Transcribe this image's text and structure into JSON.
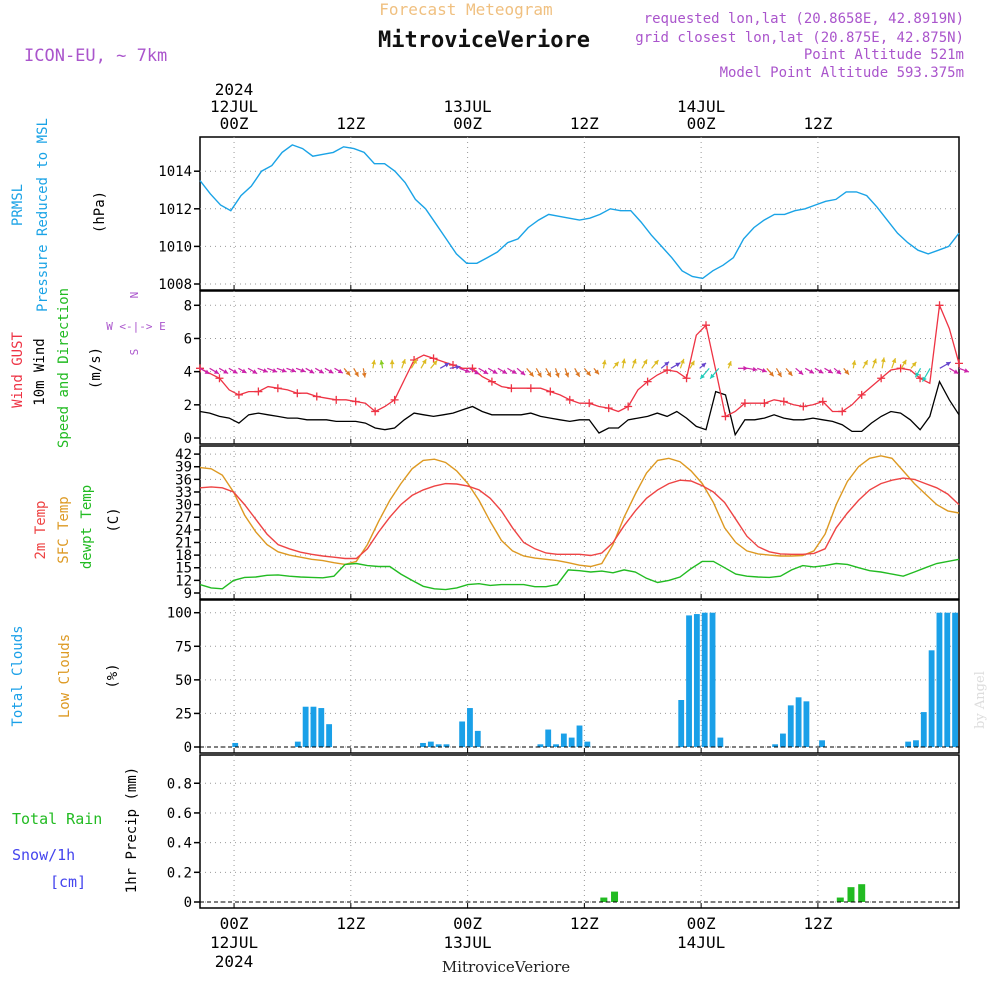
{
  "header": {
    "title_top": "Forecast Meteogram",
    "location": "MitroviceVeriore",
    "model": "ICON-EU, ~ 7km",
    "requested": "requested lon,lat (20.8658E, 42.8919N)",
    "closest": "grid closest lon,lat (20.875E, 42.875N)",
    "point_alt": "Point Altitude 521m",
    "model_alt": "Model Point Altitude 593.375m",
    "footer_location": "MitroviceVeriore",
    "watermark": "by Angel"
  },
  "time_axis": {
    "top_labels": [
      {
        "step": 3.5,
        "lines": [
          "2024",
          "12JUL",
          "00Z"
        ]
      },
      {
        "step": 15.5,
        "lines": [
          "12Z"
        ]
      },
      {
        "step": 27.5,
        "lines": [
          "13JUL",
          "00Z"
        ]
      },
      {
        "step": 39.5,
        "lines": [
          "12Z"
        ]
      },
      {
        "step": 51.5,
        "lines": [
          "14JUL",
          "00Z"
        ]
      },
      {
        "step": 63.5,
        "lines": [
          "12Z"
        ]
      }
    ],
    "bottom_labels": [
      {
        "step": 3.5,
        "lines": [
          "00Z",
          "12JUL",
          "2024"
        ]
      },
      {
        "step": 15.5,
        "lines": [
          "12Z"
        ]
      },
      {
        "step": 27.5,
        "lines": [
          "00Z",
          "13JUL"
        ]
      },
      {
        "step": 39.5,
        "lines": [
          "12Z"
        ]
      },
      {
        "step": 51.5,
        "lines": [
          "00Z",
          "14JUL"
        ]
      },
      {
        "step": 63.5,
        "lines": [
          "12Z"
        ]
      }
    ]
  },
  "colors": {
    "pressure": "#1aa3e6",
    "gust": "#ee3344",
    "wind10m": "#000000",
    "temp2m": "#ee4444",
    "sfc": "#dd9922",
    "dewpt": "#22bb22",
    "clouds": "#1aa0e8",
    "rain": "#22bb22",
    "snow": "#4444ee",
    "header_purple": "#aa55cc",
    "title_orange": "#f0c080"
  },
  "panels": {
    "pressure": {
      "labels": [
        "PRMSL",
        "Pressure Reduced to MSL"
      ],
      "unit": "(hPa)",
      "ticks": [
        "1008",
        "1010",
        "1012",
        "1014"
      ]
    },
    "wind": {
      "labels": [
        "Wind GUST",
        "10m Wind",
        "Speed and Direction"
      ],
      "unit": "(m/s)",
      "compass": [
        "N",
        "W <-|-> E",
        "S"
      ],
      "ticks": [
        "0",
        "2",
        "4",
        "6",
        "8"
      ]
    },
    "temp": {
      "labels": [
        "2m Temp",
        "SFC Temp",
        "dewpt Temp"
      ],
      "unit": "(C)",
      "ticks": [
        "9",
        "12",
        "15",
        "18",
        "21",
        "24",
        "27",
        "30",
        "33",
        "36",
        "39",
        "42"
      ]
    },
    "clouds": {
      "labels": [
        "Total Clouds",
        "Low Clouds"
      ],
      "unit": "(%)",
      "ticks": [
        "0",
        "25",
        "50",
        "75",
        "100"
      ]
    },
    "precip": {
      "labels": [
        "Total  Rain",
        "Snow/1h",
        "[cm]"
      ],
      "ylabel": "1hr Precip (mm)",
      "ticks": [
        "0",
        "0.2",
        "0.4",
        "0.6",
        "0.8"
      ]
    }
  },
  "chart_data": {
    "type": "line",
    "x_unit": "hourly steps from 12JUL 00Z minus 3.5h (step 3.5 = 12JUL 00Z)",
    "pressure_hPa": [
      1013.5,
      1012.8,
      1012.2,
      1011.9,
      1012.7,
      1013.2,
      1014.0,
      1014.3,
      1015.0,
      1015.4,
      1015.2,
      1014.8,
      1014.9,
      1015.0,
      1015.3,
      1015.2,
      1015.0,
      1014.4,
      1014.4,
      1014.0,
      1013.4,
      1012.5,
      1012.0,
      1011.2,
      1010.4,
      1009.6,
      1009.1,
      1009.1,
      1009.4,
      1009.7,
      1010.2,
      1010.4,
      1011.0,
      1011.4,
      1011.7,
      1011.6,
      1011.5,
      1011.4,
      1011.5,
      1011.7,
      1012.0,
      1011.9,
      1011.9,
      1011.3,
      1010.6,
      1010.0,
      1009.4,
      1008.7,
      1008.4,
      1008.3,
      1008.7,
      1009.0,
      1009.4,
      1010.4,
      1011.0,
      1011.4,
      1011.7,
      1011.7,
      1011.9,
      1012.0,
      1012.2,
      1012.4,
      1012.5,
      1012.9,
      1012.9,
      1012.7,
      1012.1,
      1011.4,
      1010.7,
      1010.2,
      1009.8,
      1009.6,
      1009.8,
      1010.0,
      1010.7
    ],
    "wind10m_ms": [
      1.6,
      1.5,
      1.3,
      1.2,
      0.9,
      1.4,
      1.5,
      1.4,
      1.3,
      1.2,
      1.2,
      1.1,
      1.1,
      1.1,
      1.0,
      1.0,
      1.0,
      0.9,
      0.6,
      0.5,
      0.6,
      1.1,
      1.5,
      1.4,
      1.3,
      1.4,
      1.5,
      1.7,
      1.9,
      1.6,
      1.4,
      1.4,
      1.4,
      1.4,
      1.5,
      1.3,
      1.2,
      1.1,
      1.0,
      1.1,
      1.1,
      0.3,
      0.6,
      0.6,
      1.1,
      1.2,
      1.3,
      1.5,
      1.3,
      1.6,
      1.2,
      0.7,
      0.5,
      2.8,
      2.6,
      0.2,
      1.1,
      1.1,
      1.2,
      1.4,
      1.2,
      1.1,
      1.1,
      1.2,
      1.1,
      1.0,
      0.8,
      0.4,
      0.4,
      0.9,
      1.3,
      1.6,
      1.5,
      1.1,
      0.5,
      1.3,
      3.4,
      2.3,
      1.4
    ],
    "gust_ms": [
      4.2,
      3.9,
      3.6,
      2.9,
      2.6,
      2.8,
      2.8,
      3.1,
      3.0,
      2.9,
      2.7,
      2.7,
      2.5,
      2.4,
      2.3,
      2.3,
      2.2,
      2.1,
      1.6,
      1.9,
      2.3,
      3.5,
      4.7,
      5.0,
      4.8,
      4.6,
      4.4,
      4.2,
      4.2,
      3.7,
      3.4,
      3.1,
      3.0,
      3.0,
      3.0,
      3.0,
      2.8,
      2.6,
      2.3,
      2.1,
      2.1,
      1.9,
      1.8,
      1.6,
      1.9,
      2.9,
      3.4,
      3.8,
      4.1,
      4.0,
      3.6,
      6.2,
      6.8,
      4.1,
      1.3,
      1.6,
      2.1,
      2.1,
      2.1,
      2.3,
      2.2,
      2.0,
      1.9,
      2.0,
      2.2,
      1.6,
      1.6,
      2.0,
      2.6,
      3.1,
      3.6,
      4.1,
      4.2,
      4.1,
      3.6,
      3.3,
      8.0,
      6.6,
      4.5
    ],
    "wind_dir_deg": [
      300,
      300,
      300,
      300,
      300,
      300,
      290,
      290,
      290,
      290,
      290,
      300,
      300,
      300,
      300,
      320,
      330,
      350,
      190,
      170,
      180,
      200,
      210,
      210,
      220,
      240,
      260,
      290,
      300,
      300,
      300,
      300,
      300,
      310,
      320,
      330,
      330,
      340,
      340,
      330,
      320,
      320,
      190,
      220,
      190,
      200,
      210,
      220,
      230,
      240,
      200,
      210,
      230,
      40,
      40,
      200,
      270,
      280,
      290,
      320,
      330,
      320,
      310,
      300,
      300,
      300,
      310,
      320,
      190,
      210,
      200,
      190,
      200,
      210,
      220,
      30,
      30,
      240,
      300,
      290
    ],
    "temp2m_C": [
      34.0,
      34.2,
      34.0,
      33.0,
      30.0,
      26.5,
      23.0,
      20.5,
      19.5,
      18.7,
      18.2,
      17.8,
      17.5,
      17.2,
      17.2,
      19.5,
      23.5,
      27.0,
      30.0,
      32.2,
      33.5,
      34.4,
      35.0,
      34.9,
      34.4,
      33.5,
      31.5,
      28.5,
      24.5,
      21.0,
      19.5,
      18.5,
      18.2,
      18.2,
      18.2,
      17.9,
      18.5,
      21.0,
      25.0,
      28.5,
      31.5,
      33.5,
      35.0,
      35.8,
      35.6,
      34.5,
      33.0,
      30.5,
      26.5,
      22.5,
      20.0,
      18.8,
      18.3,
      18.2,
      18.2,
      18.4,
      19.5,
      24.5,
      28.0,
      31.0,
      33.5,
      35.0,
      35.8,
      36.3,
      36.0,
      35.0,
      34.0,
      32.5,
      30.0
    ],
    "sfc_C": [
      38.8,
      38.5,
      37.0,
      33.0,
      27.5,
      23.5,
      20.5,
      18.8,
      18.0,
      17.5,
      17.0,
      16.7,
      16.2,
      15.8,
      16.5,
      20.5,
      26.0,
      31.0,
      35.0,
      38.5,
      40.5,
      40.8,
      40.0,
      38.0,
      35.0,
      31.0,
      26.0,
      21.5,
      19.0,
      17.8,
      17.3,
      17.0,
      16.7,
      16.2,
      15.6,
      15.3,
      16.0,
      20.5,
      27.0,
      32.5,
      37.5,
      40.5,
      41.0,
      40.2,
      38.0,
      35.0,
      30.5,
      24.5,
      21.0,
      19.0,
      18.3,
      18.0,
      17.8,
      17.8,
      17.9,
      19.0,
      23.0,
      30.0,
      35.5,
      39.0,
      41.0,
      41.6,
      41.0,
      38.0,
      35.0,
      32.5,
      30.0,
      28.5,
      28.0
    ],
    "dewpt_C": [
      11.0,
      10.2,
      10.0,
      12.0,
      12.7,
      12.8,
      13.2,
      13.3,
      13.0,
      12.8,
      12.7,
      12.6,
      13.0,
      15.8,
      16.0,
      15.5,
      15.3,
      15.3,
      13.5,
      12.0,
      10.6,
      10.0,
      9.8,
      10.2,
      11.0,
      11.2,
      10.8,
      11.0,
      11.0,
      11.0,
      10.5,
      10.5,
      11.0,
      14.5,
      14.3,
      14.0,
      14.2,
      13.8,
      14.5,
      14.0,
      12.5,
      11.5,
      12.0,
      12.8,
      14.8,
      16.5,
      16.5,
      15.0,
      13.5,
      13.0,
      12.8,
      12.7,
      13.0,
      14.5,
      15.5,
      15.2,
      15.5,
      16.0,
      15.8,
      15.0,
      14.3,
      14.0,
      13.5,
      13.0,
      14.0,
      15.0,
      16.0,
      16.5,
      17.0
    ],
    "total_clouds_pct": [
      0,
      0,
      0,
      0,
      3,
      0,
      0,
      0,
      0,
      0,
      0,
      0,
      4,
      30,
      30,
      29,
      17,
      0,
      0,
      0,
      0,
      0,
      0,
      0,
      0,
      0,
      0,
      0,
      3,
      4,
      2,
      2,
      0,
      19,
      29,
      12,
      0,
      0,
      0,
      0,
      0,
      0,
      0,
      2,
      13,
      2,
      10,
      7,
      16,
      4,
      0,
      0,
      0,
      0,
      0,
      0,
      0,
      0,
      0,
      0,
      0,
      35,
      98,
      99,
      100,
      100,
      7,
      0,
      0,
      0,
      0,
      0,
      0,
      2,
      10,
      31,
      37,
      34,
      0,
      5,
      0,
      0,
      0,
      0,
      0,
      0,
      0,
      0,
      0,
      0,
      4,
      5,
      26,
      72,
      100,
      100,
      100
    ],
    "low_clouds_pct": [
      0,
      0,
      0,
      0,
      0,
      0,
      0,
      0,
      0,
      0,
      0,
      0,
      0,
      0,
      0,
      0,
      0,
      0,
      0,
      0,
      0,
      0,
      0,
      0,
      0,
      0,
      0,
      0,
      0,
      0,
      0,
      0,
      0,
      0,
      0,
      0,
      0,
      0,
      0,
      0,
      0,
      0,
      0,
      0,
      0,
      0,
      0,
      0,
      0,
      0,
      0,
      0,
      0,
      0,
      0,
      0,
      0,
      0,
      0,
      0,
      0,
      0,
      0,
      0,
      0,
      0,
      0,
      0,
      0,
      0,
      0,
      0,
      0,
      0,
      0,
      0,
      0,
      0,
      0,
      0,
      0,
      0,
      0,
      0,
      0,
      0,
      0,
      0,
      0,
      0,
      0,
      0,
      0,
      0,
      0,
      0,
      0
    ],
    "rain_mm": [
      0,
      0,
      0,
      0,
      0,
      0,
      0,
      0,
      0,
      0,
      0,
      0,
      0,
      0,
      0,
      0,
      0,
      0,
      0,
      0,
      0,
      0,
      0,
      0,
      0,
      0,
      0,
      0,
      0,
      0,
      0,
      0,
      0,
      0,
      0,
      0,
      0,
      0,
      0,
      0,
      0,
      0,
      0,
      0,
      0,
      0,
      0,
      0,
      0,
      0,
      0,
      0,
      0,
      0,
      0,
      0,
      0,
      0,
      0,
      0,
      0,
      0,
      0,
      0,
      0,
      0,
      0,
      0,
      0,
      0,
      0,
      0,
      0,
      0,
      0,
      0,
      0,
      0,
      0,
      0,
      0,
      0,
      0,
      0,
      0,
      0,
      0,
      0,
      0,
      0,
      0,
      0,
      0,
      0,
      0,
      0,
      0,
      0,
      0,
      0,
      0,
      0,
      0,
      0,
      0,
      0,
      0,
      0,
      0,
      0,
      0,
      0,
      0,
      0,
      0,
      0,
      0,
      0,
      0,
      0,
      0,
      0,
      0,
      0,
      0,
      0,
      0,
      0,
      0,
      0,
      0,
      0,
      0,
      0,
      0,
      0,
      0,
      0,
      0,
      0,
      0,
      0,
      0,
      0,
      0,
      0,
      0
    ],
    "rain_bars": [
      {
        "hour_from_12Jul00Z": 38.0,
        "mm": 0.03
      },
      {
        "hour_from_12Jul00Z": 39.1,
        "mm": 0.07
      },
      {
        "hour_from_12Jul00Z": 62.3,
        "mm": 0.03
      },
      {
        "hour_from_12Jul00Z": 63.4,
        "mm": 0.1
      },
      {
        "hour_from_12Jul00Z": 64.5,
        "mm": 0.12
      }
    ],
    "ylim": {
      "pressure": [
        1008,
        1015.5
      ],
      "wind": [
        0,
        8.5
      ],
      "temp": [
        9,
        42.5
      ],
      "clouds": [
        0,
        105
      ],
      "precip": [
        0,
        0.95
      ]
    }
  }
}
